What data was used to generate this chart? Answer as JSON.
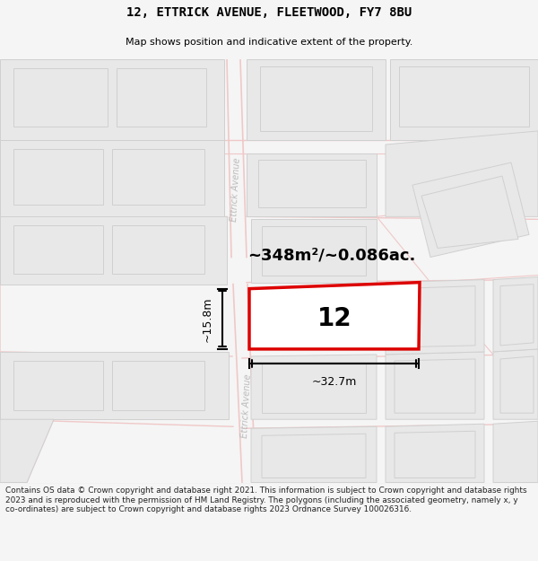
{
  "title": "12, ETTRICK AVENUE, FLEETWOOD, FY7 8BU",
  "subtitle": "Map shows position and indicative extent of the property.",
  "area_label": "~348m²/~0.086ac.",
  "property_number": "12",
  "width_label": "~32.7m",
  "height_label": "~15.8m",
  "footer_text": "Contains OS data © Crown copyright and database right 2021. This information is subject to Crown copyright and database rights 2023 and is reproduced with the permission of HM Land Registry. The polygons (including the associated geometry, namely x, y co-ordinates) are subject to Crown copyright and database rights 2023 Ordnance Survey 100026316.",
  "bg_color": "#f5f5f5",
  "map_bg": "#ffffff",
  "road_color": "#f0c8c8",
  "building_fill": "#e8e8e8",
  "building_edge": "#d0d0d0",
  "property_color": "#dd0000",
  "street_color": "#bbbbbb",
  "title_color": "#000000",
  "footer_color": "#222222"
}
